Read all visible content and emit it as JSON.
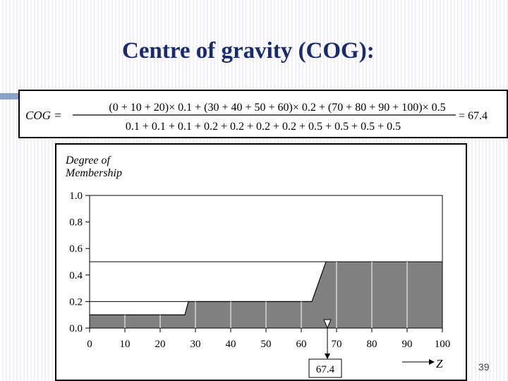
{
  "slide": {
    "title": "Centre of gravity (COG):",
    "page_number": "39"
  },
  "formula": {
    "lhs": "COG =",
    "numerator": "(0 + 10 + 20)× 0.1 + (30 + 40 + 50 + 60)× 0.2 + (70 + 80 + 90 + 100)× 0.5",
    "denominator": "0.1 + 0.1 + 0.1 + 0.2 + 0.2 + 0.2 + 0.2 + 0.5 + 0.5 + 0.5 + 0.5",
    "result": "= 67.4"
  },
  "chart_data": {
    "type": "area",
    "ylabel_line1": "Degree of",
    "ylabel_line2": "Membership",
    "xlabel": "Z",
    "xlim": [
      0,
      100
    ],
    "ylim": [
      0,
      1.0
    ],
    "xticks": [
      "0",
      "10",
      "20",
      "30",
      "40",
      "50",
      "60",
      "70",
      "80",
      "90",
      "100"
    ],
    "yticks": [
      "0.0",
      "0.2",
      "0.4",
      "0.6",
      "0.8",
      "1.0"
    ],
    "series": [
      {
        "x": [
          0,
          27,
          28,
          63,
          67,
          100
        ],
        "y": [
          0.1,
          0.1,
          0.2,
          0.2,
          0.5,
          0.5
        ]
      }
    ],
    "gridlines_x": [
      10,
      20,
      30,
      40,
      50,
      60,
      70,
      80,
      90
    ],
    "annotation": {
      "x": 67.4,
      "label": "67.4"
    },
    "fill_color": "#808080"
  }
}
